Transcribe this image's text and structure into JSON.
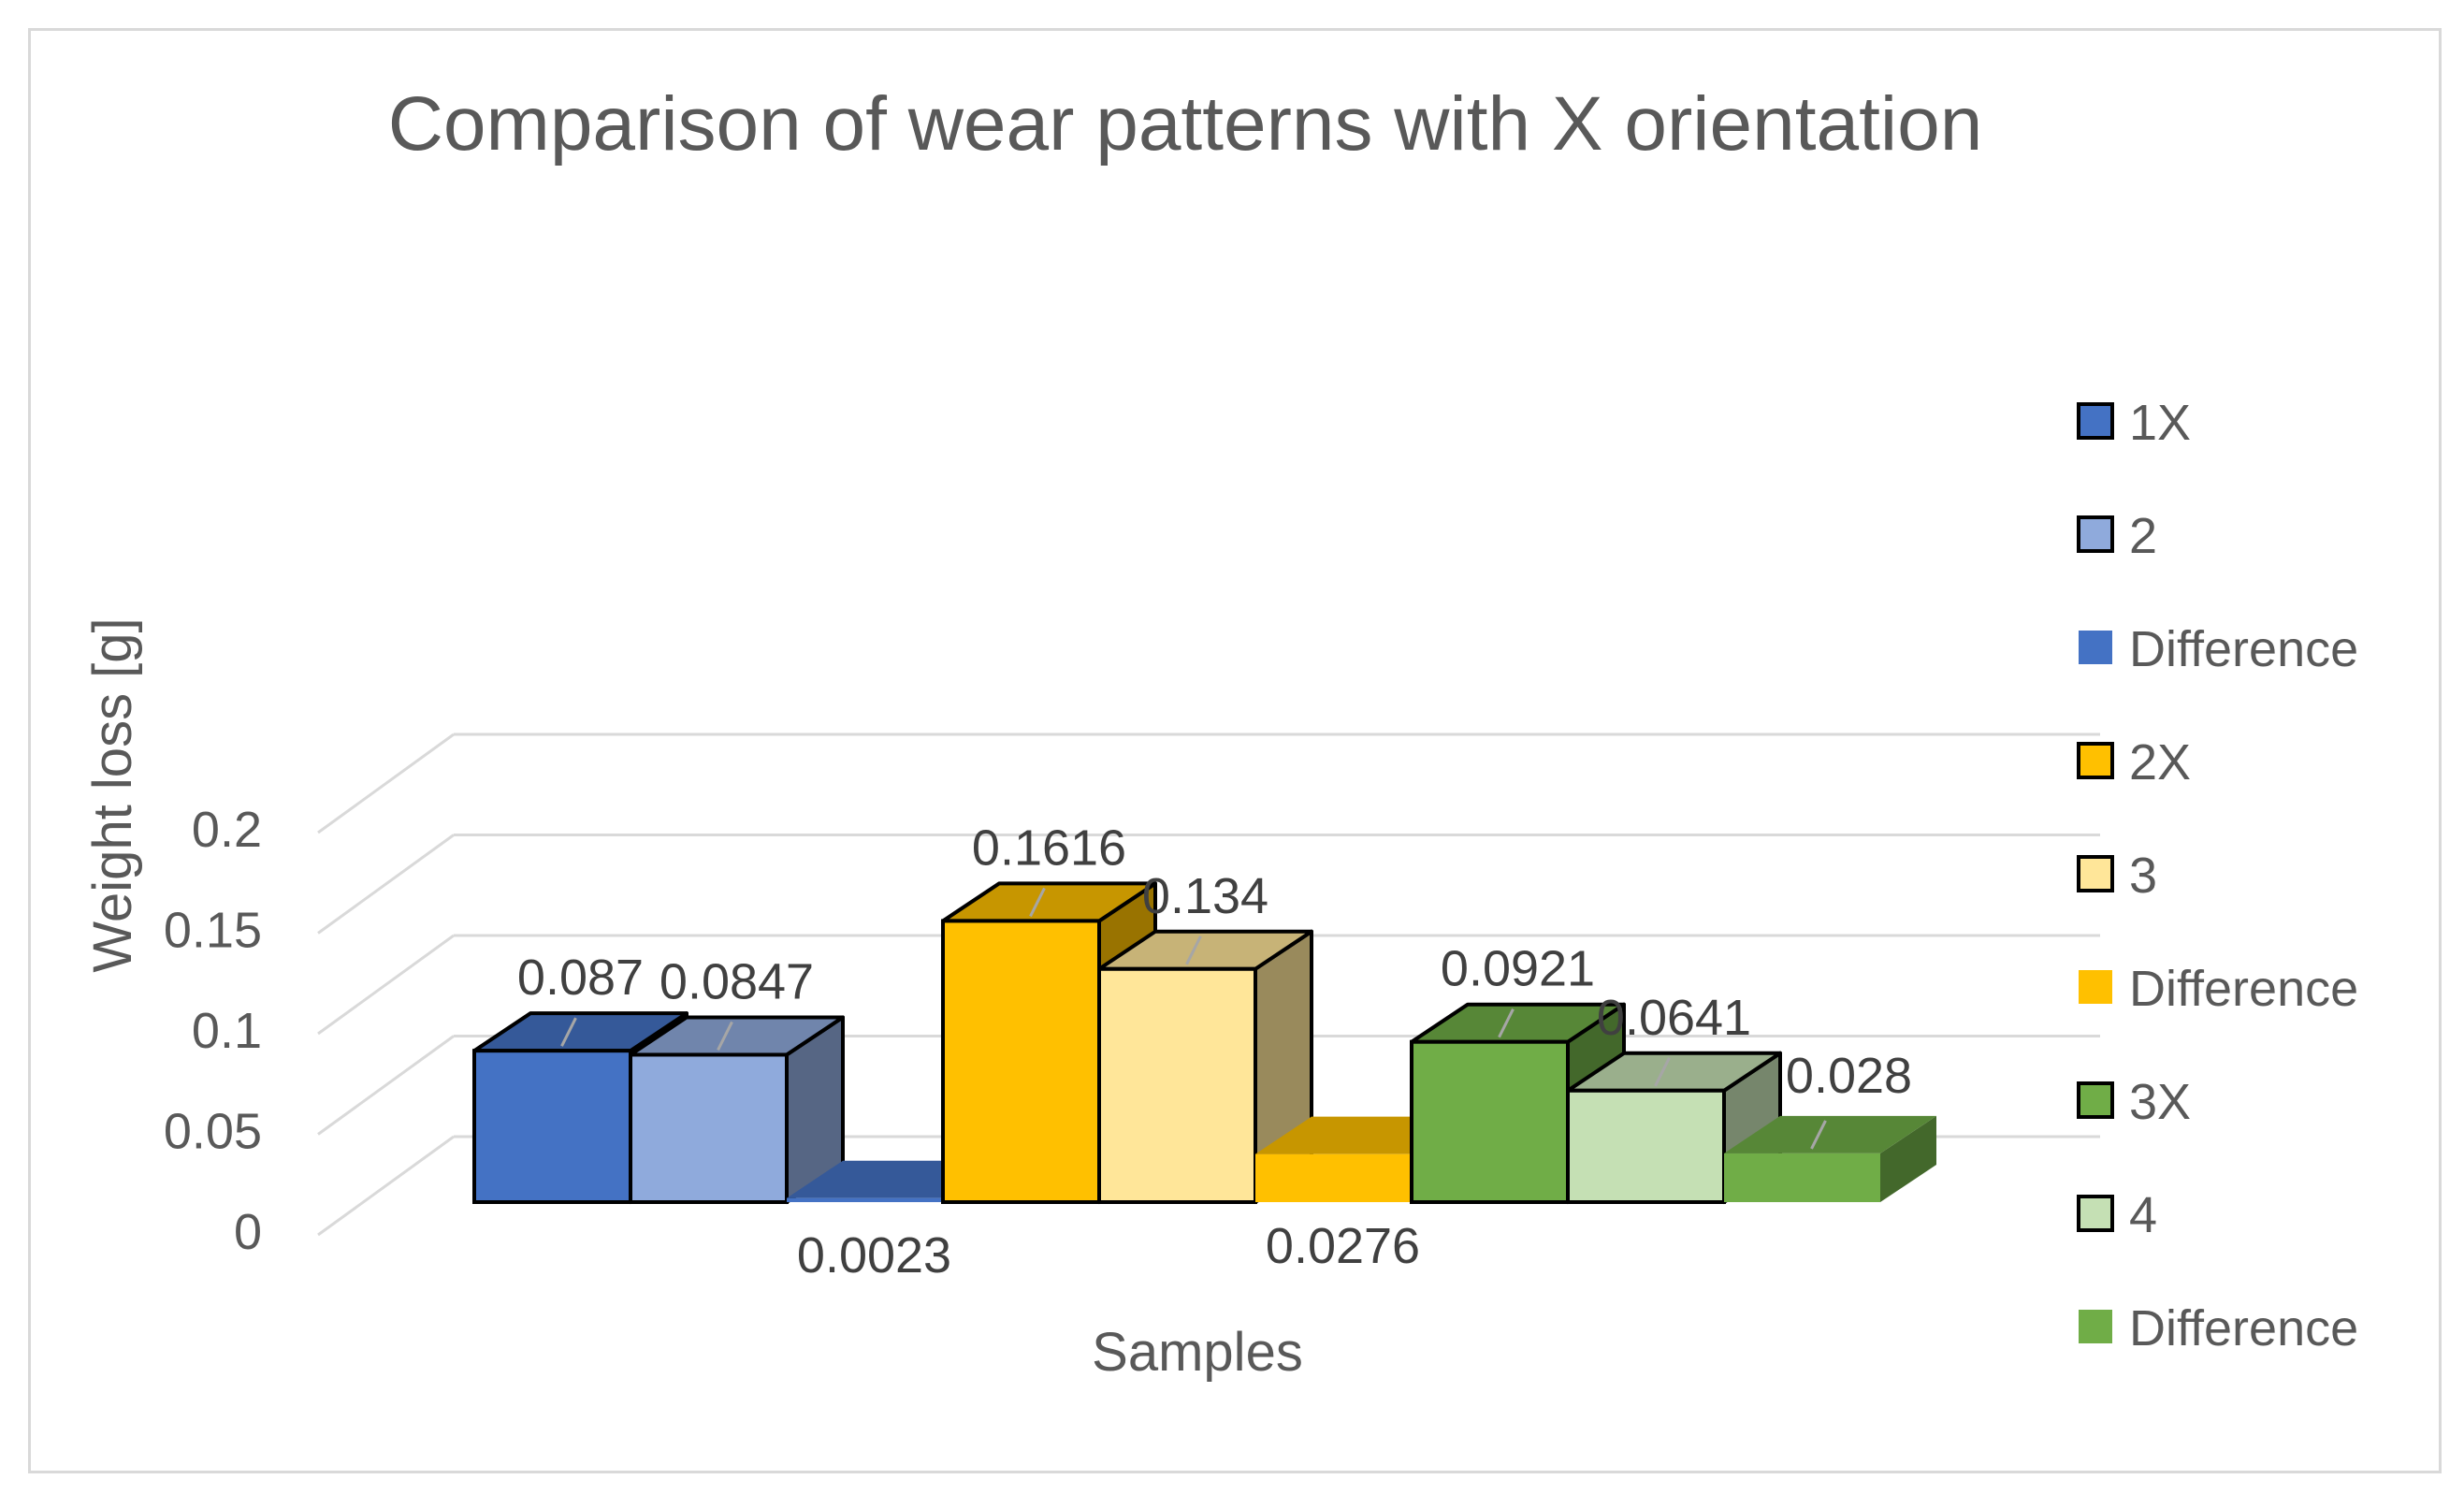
{
  "chart_data": {
    "type": "bar",
    "title": "Comparison of wear patterns with X orientation",
    "xlabel": "Samples",
    "ylabel": "Weight loss [g]",
    "ylim": [
      0,
      0.2
    ],
    "yticks": [
      "0",
      "0.05",
      "0.1",
      "0.15",
      "0.2"
    ],
    "grid": true,
    "legend_position": "right",
    "series": [
      {
        "name": "1X",
        "value": 0.087,
        "label": "0.087",
        "color": "#4472c4",
        "border": "#000000"
      },
      {
        "name": "2",
        "value": 0.0847,
        "label": "0.0847",
        "color": "#8faadc",
        "border": "#000000"
      },
      {
        "name": "Difference",
        "value": 0.0023,
        "label": "0.0023",
        "color": "#4472c4",
        "border": "none"
      },
      {
        "name": "2X",
        "value": 0.1616,
        "label": "0.1616",
        "color": "#ffc000",
        "border": "#000000"
      },
      {
        "name": "3",
        "value": 0.134,
        "label": "0.134",
        "color": "#ffe699",
        "border": "#000000"
      },
      {
        "name": "Difference",
        "value": 0.0276,
        "label": "0.0276",
        "color": "#ffc000",
        "border": "none"
      },
      {
        "name": "3X",
        "value": 0.0921,
        "label": "0.0921",
        "color": "#70ad47",
        "border": "#000000"
      },
      {
        "name": "4",
        "value": 0.0641,
        "label": "0.0641",
        "color": "#c5e0b4",
        "border": "#000000"
      },
      {
        "name": "Difference",
        "value": 0.028,
        "label": "0.028",
        "color": "#70ad47",
        "border": "none"
      }
    ]
  }
}
